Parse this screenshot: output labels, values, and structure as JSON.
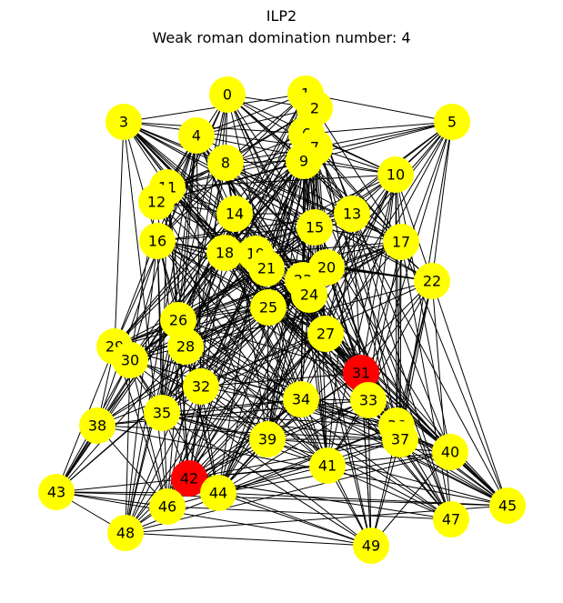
{
  "figure": {
    "title": "ILP2",
    "subtitle": "Weak roman domination number: 4"
  },
  "graph": {
    "node_color_default": "#ffff00",
    "node_color_highlight": "#ff0000",
    "edge_color": "#000000",
    "highlighted_nodes": [
      "31",
      "42"
    ],
    "nodes": [
      "0",
      "1",
      "2",
      "3",
      "4",
      "5",
      "6",
      "7",
      "8",
      "9",
      "10",
      "11",
      "12",
      "13",
      "14",
      "15",
      "16",
      "17",
      "18",
      "19",
      "20",
      "21",
      "22",
      "23",
      "24",
      "25",
      "26",
      "27",
      "28",
      "29",
      "30",
      "31",
      "32",
      "33",
      "34",
      "35",
      "36",
      "37",
      "38",
      "39",
      "40",
      "41",
      "42",
      "43",
      "44",
      "45",
      "46",
      "47",
      "48",
      "49"
    ]
  }
}
